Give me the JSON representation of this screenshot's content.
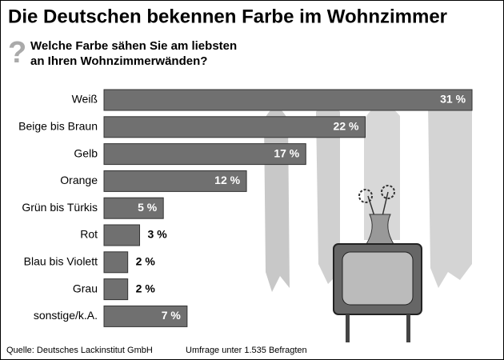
{
  "chart_data": {
    "type": "bar",
    "title": "Die Deutschen bekennen Farbe im Wohnzimmer",
    "subtitle": [
      "Welche Farbe sähen Sie am liebsten",
      "an Ihren Wohnzimmerwänden?"
    ],
    "categories": [
      "Weiß",
      "Beige bis Braun",
      "Gelb",
      "Orange",
      "Grün bis Türkis",
      "Rot",
      "Blau bis Violett",
      "Grau",
      "sonstige/k.A."
    ],
    "values": [
      31,
      22,
      17,
      12,
      5,
      3,
      2,
      2,
      7
    ],
    "value_labels": [
      "31 %",
      "22 %",
      "17 %",
      "12 %",
      "5 %",
      "3 %",
      "2 %",
      "2 %",
      "7 %"
    ],
    "color": "#707070",
    "source": "Quelle: Deutsches Lackinstitut GmbH",
    "note": "Umfrage unter 1.535 Befragten"
  }
}
